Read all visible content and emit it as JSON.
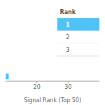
{
  "chart_data": {
    "type": "bar",
    "orientation": "horizontal",
    "categories": [
      null
    ],
    "values": [
      11
    ],
    "color": "#4FC3F7",
    "xlabel": "Signal Rank (Top 50)",
    "xlim": [
      10,
      40
    ],
    "xticks": [
      20,
      30
    ],
    "tick_labels": "x",
    "table": {
      "header": "Rank",
      "rows": [
        "1",
        "2",
        "3"
      ],
      "colors": [
        "#4FC3F7",
        "#ffffff",
        "#ffffff"
      ]
    }
  }
}
